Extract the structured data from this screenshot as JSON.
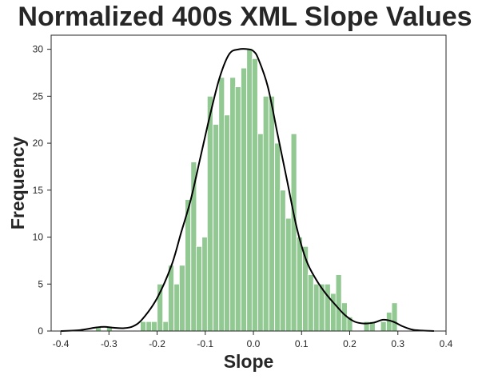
{
  "chart_data": {
    "type": "bar",
    "title": "Normalized 400s XML Slope Values",
    "xlabel": "Slope",
    "ylabel": "Frequency",
    "xlim": [
      -0.42,
      0.4
    ],
    "ylim": [
      0,
      31.5
    ],
    "xticks": [
      -0.4,
      -0.3,
      -0.2,
      -0.1,
      0.0,
      0.1,
      0.2,
      0.3,
      0.4
    ],
    "xtick_labels": [
      "-0.4",
      "-0.3",
      "-0.2",
      "-0.1",
      "0.0",
      "0.1",
      "0.2",
      "0.3",
      "0.4"
    ],
    "yticks": [
      0,
      5,
      10,
      15,
      20,
      25,
      30
    ],
    "ytick_labels": [
      "0",
      "5",
      "10",
      "15",
      "20",
      "25",
      "30"
    ],
    "bin_width": 0.0116,
    "bins": [
      {
        "x": -0.322,
        "value": 0.5
      },
      {
        "x": -0.299,
        "value": 0.5
      },
      {
        "x": -0.229,
        "value": 1
      },
      {
        "x": -0.217,
        "value": 1
      },
      {
        "x": -0.206,
        "value": 1
      },
      {
        "x": -0.194,
        "value": 5
      },
      {
        "x": -0.182,
        "value": 1
      },
      {
        "x": -0.171,
        "value": 7
      },
      {
        "x": -0.159,
        "value": 5
      },
      {
        "x": -0.148,
        "value": 7
      },
      {
        "x": -0.136,
        "value": 14
      },
      {
        "x": -0.124,
        "value": 18
      },
      {
        "x": -0.113,
        "value": 9
      },
      {
        "x": -0.101,
        "value": 10
      },
      {
        "x": -0.09,
        "value": 25
      },
      {
        "x": -0.078,
        "value": 22
      },
      {
        "x": -0.066,
        "value": 27
      },
      {
        "x": -0.055,
        "value": 23
      },
      {
        "x": -0.043,
        "value": 27
      },
      {
        "x": -0.032,
        "value": 26
      },
      {
        "x": -0.02,
        "value": 28
      },
      {
        "x": -0.008,
        "value": 30
      },
      {
        "x": 0.003,
        "value": 29
      },
      {
        "x": 0.015,
        "value": 21
      },
      {
        "x": 0.026,
        "value": 25
      },
      {
        "x": 0.038,
        "value": 25
      },
      {
        "x": 0.05,
        "value": 20
      },
      {
        "x": 0.061,
        "value": 15
      },
      {
        "x": 0.073,
        "value": 12
      },
      {
        "x": 0.084,
        "value": 21
      },
      {
        "x": 0.096,
        "value": 10
      },
      {
        "x": 0.108,
        "value": 9
      },
      {
        "x": 0.119,
        "value": 6
      },
      {
        "x": 0.131,
        "value": 5
      },
      {
        "x": 0.142,
        "value": 5
      },
      {
        "x": 0.154,
        "value": 5
      },
      {
        "x": 0.166,
        "value": 4
      },
      {
        "x": 0.177,
        "value": 6
      },
      {
        "x": 0.189,
        "value": 3
      },
      {
        "x": 0.2,
        "value": 1.5
      },
      {
        "x": 0.235,
        "value": 1
      },
      {
        "x": 0.247,
        "value": 1
      },
      {
        "x": 0.27,
        "value": 1
      },
      {
        "x": 0.282,
        "value": 2
      },
      {
        "x": 0.293,
        "value": 3
      }
    ],
    "kde": {
      "x": [
        -0.4,
        -0.36,
        -0.33,
        -0.31,
        -0.29,
        -0.27,
        -0.25,
        -0.23,
        -0.2,
        -0.17,
        -0.15,
        -0.13,
        -0.11,
        -0.09,
        -0.07,
        -0.05,
        -0.03,
        -0.01,
        0.0,
        0.01,
        0.03,
        0.05,
        0.07,
        0.09,
        0.11,
        0.13,
        0.15,
        0.17,
        0.19,
        0.21,
        0.23,
        0.25,
        0.27,
        0.29,
        0.31,
        0.33,
        0.35,
        0.375
      ],
      "y": [
        0.0,
        0.1,
        0.35,
        0.45,
        0.35,
        0.3,
        0.5,
        1.3,
        3.5,
        7.0,
        10.5,
        14.0,
        18.5,
        23.0,
        27.0,
        29.5,
        30.0,
        30.0,
        29.8,
        29.0,
        26.0,
        21.0,
        16.0,
        11.0,
        7.5,
        5.5,
        4.0,
        2.8,
        1.7,
        1.0,
        0.8,
        0.9,
        1.2,
        1.0,
        0.5,
        0.15,
        0.05,
        0.0
      ]
    },
    "grid": false,
    "colors": {
      "bar_fill": "#92c993",
      "bar_edge": "#ffffff",
      "kde_line": "#000000",
      "axis": "#262626",
      "text": "#262626"
    }
  }
}
